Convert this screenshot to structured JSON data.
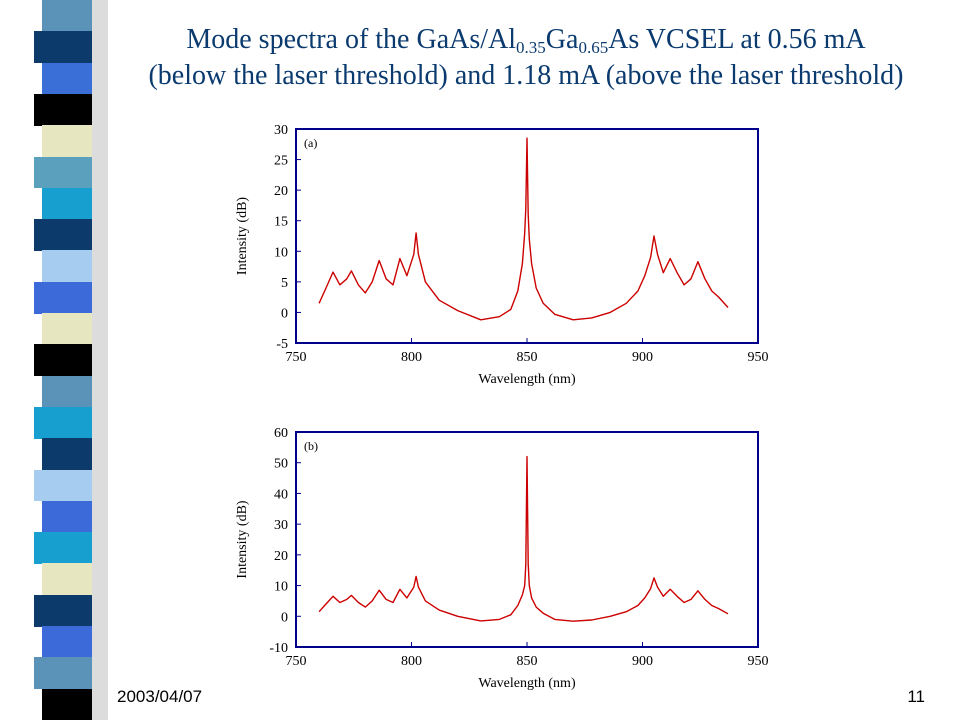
{
  "slide": {
    "title_line1_parts": [
      "Mode spectra of the GaAs/Al",
      "0.35",
      "Ga",
      "0.65",
      "As VCSEL at 0.56 mA"
    ],
    "title_line2": "(below the laser threshold) and 1.18 mA (above the laser threshold)",
    "date": "2003/04/07",
    "page_number": "11"
  },
  "stripe_colors": [
    "#5b93b8",
    "#0b3a6b",
    "#3a6fd8",
    "#000000",
    "#e6e7c0",
    "#5ba0bd",
    "#17a0cf",
    "#0b3a6b",
    "#a6ccf0",
    "#3c6bd9",
    "#e6e7c0",
    "#000000",
    "#5b93b8",
    "#17a0cf",
    "#0b3a6b",
    "#a6ccf0",
    "#3c6bd9",
    "#17a0cf",
    "#e6e7c0",
    "#0b3a6b",
    "#3c6bd9",
    "#5b93b8",
    "#000000"
  ],
  "chart_data": [
    {
      "type": "line",
      "panel_label": "(a)",
      "xlabel": "Wavelength (nm)",
      "ylabel": "Intensity (dB)",
      "xlim": [
        750,
        950
      ],
      "ylim": [
        -5,
        30
      ],
      "xticks": [
        "750",
        "800",
        "850",
        "900",
        "950"
      ],
      "yticks": [
        "-5",
        "0",
        "5",
        "10",
        "15",
        "20",
        "25",
        "30"
      ],
      "grid": false,
      "line_color": "#cc0000",
      "series": [
        {
          "x": [
            760,
            763,
            766,
            769,
            772,
            774,
            777,
            780,
            783,
            786,
            789,
            792,
            795,
            798,
            801,
            802,
            803,
            806,
            812,
            820,
            830,
            838,
            843,
            846,
            848,
            849,
            849.5,
            850,
            850.5,
            851,
            852,
            854,
            857,
            862,
            870,
            878,
            886,
            893,
            898,
            901,
            903.5,
            905,
            906.5,
            909,
            912,
            915,
            918,
            921,
            924,
            927,
            930,
            933,
            937
          ],
          "y": [
            1.5,
            4,
            6.6,
            4.5,
            5.5,
            6.8,
            4.5,
            3.2,
            5,
            8.5,
            5.5,
            4.5,
            8.8,
            6,
            9.5,
            13,
            9.5,
            5,
            2,
            0.3,
            -1.2,
            -0.7,
            0.5,
            3.5,
            8,
            13,
            17,
            28.5,
            16,
            12,
            8,
            4,
            1.5,
            -0.3,
            -1.2,
            -0.9,
            0,
            1.5,
            3.5,
            6,
            9,
            12.5,
            9.5,
            6.5,
            8.8,
            6.5,
            4.5,
            5.5,
            8.3,
            5.5,
            3.5,
            2.5,
            0.8
          ]
        }
      ]
    },
    {
      "type": "line",
      "panel_label": "(b)",
      "xlabel": "Wavelength (nm)",
      "ylabel": "Intensity (dB)",
      "xlim": [
        750,
        950
      ],
      "ylim": [
        -10,
        60
      ],
      "xticks": [
        "750",
        "800",
        "850",
        "900",
        "950"
      ],
      "yticks": [
        "-10",
        "0",
        "10",
        "20",
        "30",
        "40",
        "50",
        "60"
      ],
      "grid": false,
      "line_color": "#cc0000",
      "series": [
        {
          "x": [
            760,
            763,
            766,
            769,
            772,
            774,
            777,
            780,
            783,
            786,
            789,
            792,
            795,
            798,
            801,
            802,
            803,
            806,
            812,
            820,
            830,
            838,
            843,
            846,
            848,
            849,
            849.5,
            850,
            850.5,
            851,
            852,
            854,
            857,
            862,
            870,
            878,
            886,
            893,
            898,
            901,
            903.5,
            905,
            906.5,
            909,
            912,
            915,
            918,
            921,
            924,
            927,
            930,
            933,
            937
          ],
          "y": [
            1.5,
            4,
            6.5,
            4.5,
            5.5,
            6.8,
            4.5,
            3,
            5,
            8.5,
            5.5,
            4.5,
            8.8,
            6,
            9.5,
            13,
            9.5,
            5,
            2,
            0,
            -1.5,
            -1,
            0.5,
            3.5,
            7,
            10,
            17,
            52,
            17,
            10,
            6,
            3,
            1,
            -1,
            -1.6,
            -1.2,
            0,
            1.5,
            3.5,
            6,
            9,
            12.5,
            9.5,
            6.5,
            8.8,
            6.5,
            4.5,
            5.5,
            8.3,
            5.5,
            3.5,
            2.5,
            0.8
          ]
        }
      ]
    }
  ]
}
